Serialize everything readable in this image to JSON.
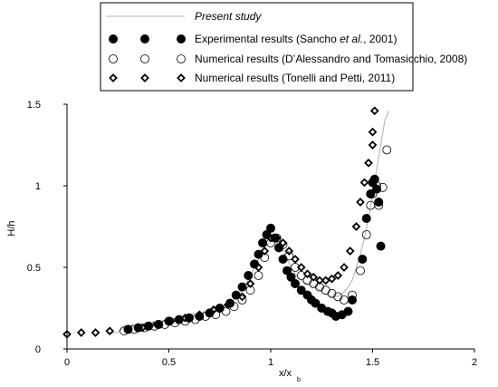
{
  "chart_data": {
    "type": "scatter",
    "xlabel": "x/x",
    "xlabel_subscript": "b",
    "ylabel": "H/h",
    "xlim": [
      0,
      2
    ],
    "ylim": [
      0,
      1.5
    ],
    "x_ticks": [
      {
        "value": 0,
        "label": "0"
      },
      {
        "value": 0.5,
        "label": "0.5"
      },
      {
        "value": 1,
        "label": "1"
      },
      {
        "value": 1.5,
        "label": "1.5"
      },
      {
        "value": 2,
        "label": "2"
      }
    ],
    "y_ticks": [
      {
        "value": 0,
        "label": "0"
      },
      {
        "value": 0.5,
        "label": "0.5"
      },
      {
        "value": 1,
        "label": "1"
      },
      {
        "value": 1.5,
        "label": "1.5"
      }
    ],
    "grid": false,
    "legend": {
      "placement": "top",
      "entries": [
        {
          "text": "Present study",
          "italic": true,
          "marker": "line"
        },
        {
          "text_parts": [
            {
              "text": "Experimental results (Sancho "
            },
            {
              "text": "et al.",
              "italic": true
            },
            {
              "text": ", 2001)"
            }
          ],
          "marker": "filled-circle"
        },
        {
          "text_parts": [
            {
              "text": "Numerical results (D’Alessandro and Tomasicchio, 2008)"
            }
          ],
          "marker": "open-circle"
        },
        {
          "text_parts": [
            {
              "text": "Numerical results (Tonelli and Petti, 2011)"
            }
          ],
          "marker": "diamond"
        }
      ]
    },
    "series": [
      {
        "marker": "line",
        "color": "#b0b0b0",
        "x": [
          0.2,
          0.25,
          0.28,
          0.3,
          0.32,
          0.34,
          0.36,
          0.38,
          0.4,
          0.42,
          0.44,
          0.46,
          0.48,
          0.5,
          0.52,
          0.55,
          0.57,
          0.6,
          0.62,
          0.65,
          0.67,
          0.7,
          0.72,
          0.75,
          0.78,
          0.8,
          0.82,
          0.84,
          0.86,
          0.88,
          0.9,
          0.92,
          0.94,
          0.96,
          0.98,
          1.0,
          1.02,
          1.04,
          1.06,
          1.08,
          1.1,
          1.12,
          1.14,
          1.16,
          1.18,
          1.2,
          1.22,
          1.24,
          1.26,
          1.28,
          1.3,
          1.32,
          1.34,
          1.36,
          1.38,
          1.4,
          1.42,
          1.44,
          1.46,
          1.48,
          1.5,
          1.52,
          1.54,
          1.56,
          1.58
        ],
        "y": [
          0.1,
          0.1,
          0.14,
          0.11,
          0.15,
          0.11,
          0.14,
          0.12,
          0.16,
          0.13,
          0.17,
          0.14,
          0.18,
          0.15,
          0.19,
          0.16,
          0.2,
          0.17,
          0.22,
          0.18,
          0.23,
          0.2,
          0.25,
          0.22,
          0.28,
          0.26,
          0.3,
          0.33,
          0.36,
          0.4,
          0.45,
          0.5,
          0.55,
          0.6,
          0.64,
          0.66,
          0.66,
          0.64,
          0.6,
          0.55,
          0.5,
          0.46,
          0.43,
          0.41,
          0.4,
          0.39,
          0.38,
          0.36,
          0.34,
          0.33,
          0.32,
          0.32,
          0.33,
          0.35,
          0.38,
          0.42,
          0.5,
          0.58,
          0.68,
          0.8,
          0.95,
          1.1,
          1.25,
          1.4,
          1.46
        ]
      },
      {
        "marker": "filled-circle",
        "x": [
          0.3,
          0.35,
          0.4,
          0.45,
          0.5,
          0.55,
          0.6,
          0.65,
          0.7,
          0.75,
          0.8,
          0.83,
          0.86,
          0.89,
          0.92,
          0.94,
          0.96,
          0.98,
          1.0,
          1.02,
          1.04,
          1.06,
          1.08,
          1.1,
          1.12,
          1.15,
          1.18,
          1.2,
          1.22,
          1.25,
          1.28,
          1.3,
          1.32,
          1.35,
          1.38,
          1.4,
          1.45,
          1.47,
          1.49,
          1.5,
          1.51,
          1.52,
          1.53,
          1.54
        ],
        "y": [
          0.12,
          0.13,
          0.14,
          0.15,
          0.17,
          0.18,
          0.19,
          0.2,
          0.22,
          0.25,
          0.28,
          0.33,
          0.38,
          0.45,
          0.52,
          0.58,
          0.65,
          0.7,
          0.74,
          0.68,
          0.62,
          0.55,
          0.48,
          0.44,
          0.4,
          0.36,
          0.33,
          0.3,
          0.28,
          0.25,
          0.23,
          0.22,
          0.2,
          0.21,
          0.23,
          0.3,
          0.55,
          0.8,
          0.95,
          1.02,
          1.04,
          0.98,
          0.9,
          0.63
        ]
      },
      {
        "marker": "open-circle",
        "x": [
          0.28,
          0.33,
          0.38,
          0.43,
          0.48,
          0.53,
          0.58,
          0.63,
          0.68,
          0.73,
          0.78,
          0.82,
          0.86,
          0.9,
          0.94,
          0.97,
          1.0,
          1.03,
          1.06,
          1.09,
          1.12,
          1.15,
          1.18,
          1.21,
          1.24,
          1.27,
          1.3,
          1.33,
          1.36,
          1.4,
          1.44,
          1.47,
          1.49,
          1.5,
          1.52,
          1.53,
          1.55,
          1.57
        ],
        "y": [
          0.11,
          0.12,
          0.13,
          0.14,
          0.15,
          0.16,
          0.17,
          0.18,
          0.2,
          0.21,
          0.23,
          0.26,
          0.3,
          0.36,
          0.45,
          0.56,
          0.65,
          0.68,
          0.64,
          0.57,
          0.5,
          0.45,
          0.42,
          0.4,
          0.38,
          0.36,
          0.34,
          0.32,
          0.3,
          0.33,
          0.48,
          0.7,
          0.88,
          0.95,
          1.0,
          0.88,
          0.99,
          1.22
        ]
      },
      {
        "marker": "diamond",
        "x": [
          0.0,
          0.07,
          0.14,
          0.21,
          0.3,
          0.37,
          0.44,
          0.51,
          0.58,
          0.65,
          0.72,
          0.79,
          0.86,
          0.9,
          0.94,
          0.97,
          1.0,
          1.03,
          1.06,
          1.09,
          1.12,
          1.15,
          1.18,
          1.21,
          1.24,
          1.27,
          1.3,
          1.33,
          1.36,
          1.39,
          1.42,
          1.44,
          1.46,
          1.48,
          1.5,
          1.5,
          1.51
        ],
        "y": [
          0.09,
          0.1,
          0.1,
          0.11,
          0.12,
          0.13,
          0.15,
          0.17,
          0.19,
          0.21,
          0.24,
          0.27,
          0.32,
          0.4,
          0.5,
          0.6,
          0.68,
          0.68,
          0.65,
          0.6,
          0.55,
          0.5,
          0.46,
          0.44,
          0.42,
          0.42,
          0.43,
          0.45,
          0.5,
          0.6,
          0.75,
          0.9,
          1.02,
          1.14,
          1.25,
          1.33,
          1.46
        ]
      }
    ]
  }
}
